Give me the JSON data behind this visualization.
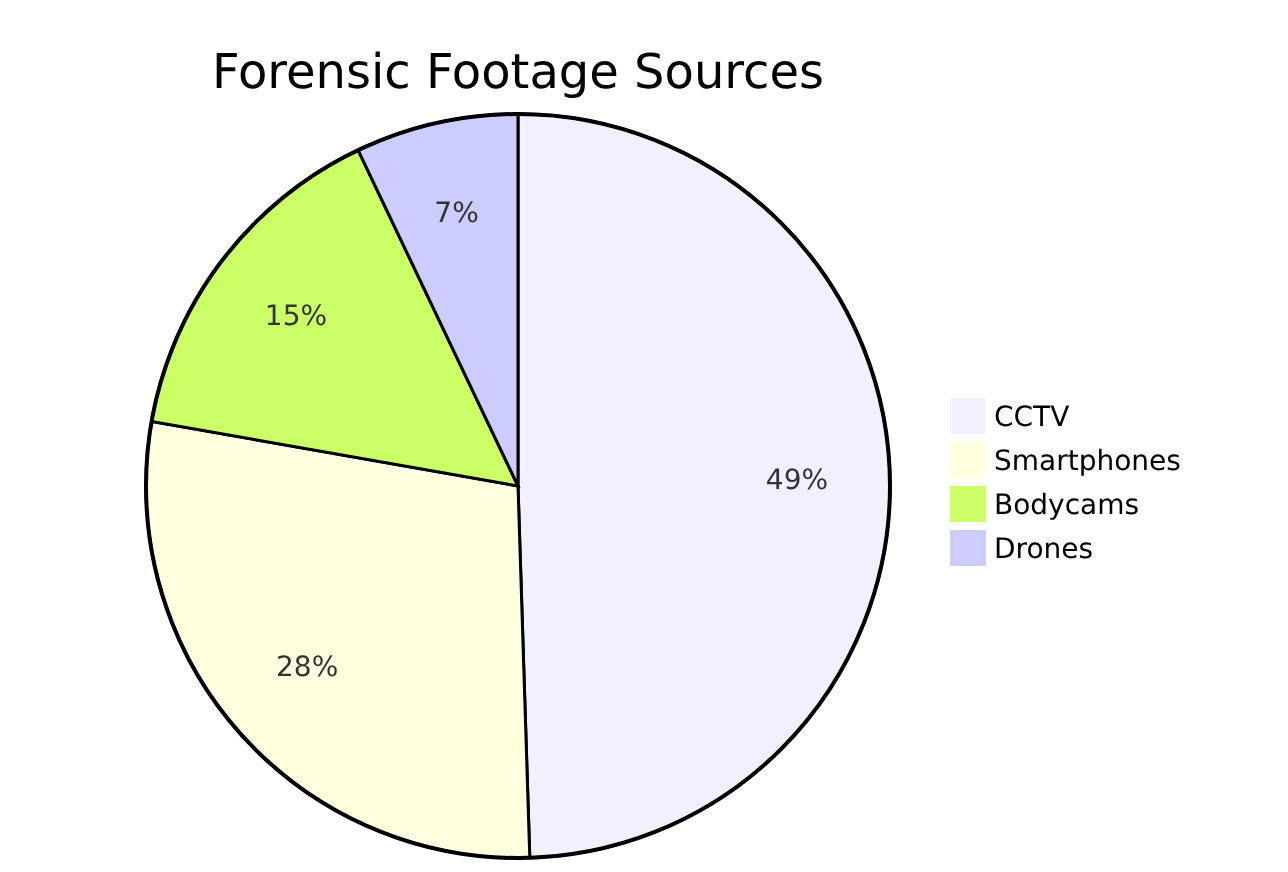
{
  "chart_data": {
    "type": "pie",
    "title": "Forensic Footage Sources",
    "categories": [
      "CCTV",
      "Smartphones",
      "Bodycams",
      "Drones"
    ],
    "values": [
      49,
      28,
      15,
      7
    ],
    "colors": [
      "#f0f0ff",
      "#ffffe0",
      "#ccff66",
      "#ccccff"
    ],
    "value_labels": [
      "49%",
      "28%",
      "15%",
      "7%"
    ],
    "legend": "right"
  }
}
